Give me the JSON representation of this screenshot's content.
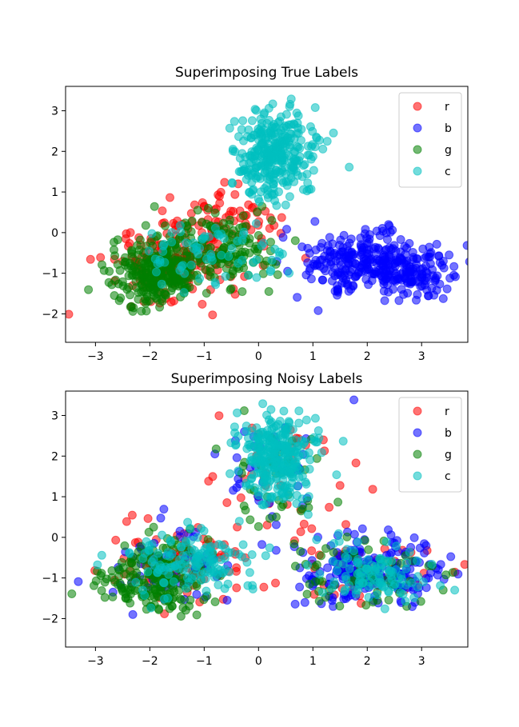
{
  "chart_data": [
    {
      "type": "scatter",
      "title": "Superimposing True Labels",
      "xlabel": "",
      "ylabel": "",
      "xlim": [
        -3.55,
        3.85
      ],
      "ylim": [
        -2.7,
        3.6
      ],
      "xticks": [
        -3,
        -2,
        -1,
        0,
        1,
        2,
        3
      ],
      "yticks": [
        -2,
        -1,
        0,
        1,
        2,
        3
      ],
      "grid": false,
      "legend": "upper right",
      "marker_alpha": 0.55,
      "series": [
        {
          "name": "r",
          "color": "#ff0000",
          "clusters": [
            {
              "cx": -1.7,
              "cy": -0.8,
              "sx": 0.55,
              "sy": 0.45,
              "n": 140
            },
            {
              "cx": -0.6,
              "cy": 0.2,
              "sx": 0.5,
              "sy": 0.4,
              "n": 70
            }
          ]
        },
        {
          "name": "b",
          "color": "#0000ff",
          "clusters": [
            {
              "cx": 2.0,
              "cy": -0.7,
              "sx": 0.6,
              "sy": 0.35,
              "n": 280
            },
            {
              "cx": 2.9,
              "cy": -1.1,
              "sx": 0.3,
              "sy": 0.3,
              "n": 80
            }
          ]
        },
        {
          "name": "g",
          "color": "#008000",
          "clusters": [
            {
              "cx": -1.9,
              "cy": -1.0,
              "sx": 0.45,
              "sy": 0.4,
              "n": 260
            },
            {
              "cx": -0.7,
              "cy": -0.4,
              "sx": 0.55,
              "sy": 0.45,
              "n": 150
            }
          ]
        },
        {
          "name": "c",
          "color": "#00bfbf",
          "clusters": [
            {
              "cx": 0.3,
              "cy": 1.9,
              "sx": 0.35,
              "sy": 0.55,
              "n": 320
            },
            {
              "cx": -0.9,
              "cy": -0.5,
              "sx": 0.6,
              "sy": 0.4,
              "n": 70
            }
          ]
        }
      ]
    },
    {
      "type": "scatter",
      "title": "Superimposing Noisy Labels",
      "xlabel": "",
      "ylabel": "",
      "xlim": [
        -3.55,
        3.85
      ],
      "ylim": [
        -2.7,
        3.6
      ],
      "xticks": [
        -3,
        -2,
        -1,
        0,
        1,
        2,
        3
      ],
      "yticks": [
        -2,
        -1,
        0,
        1,
        2,
        3
      ],
      "grid": false,
      "legend": "upper right",
      "marker_alpha": 0.55,
      "series": [
        {
          "name": "r",
          "color": "#ff0000",
          "clusters": [
            {
              "cx": -1.3,
              "cy": -0.7,
              "sx": 0.7,
              "sy": 0.5,
              "n": 90
            },
            {
              "cx": 0.4,
              "cy": 1.5,
              "sx": 0.5,
              "sy": 0.7,
              "n": 40
            },
            {
              "cx": 1.8,
              "cy": -0.8,
              "sx": 0.7,
              "sy": 0.4,
              "n": 50
            }
          ]
        },
        {
          "name": "b",
          "color": "#0000ff",
          "clusters": [
            {
              "cx": 2.1,
              "cy": -0.8,
              "sx": 0.65,
              "sy": 0.4,
              "n": 200
            },
            {
              "cx": -1.5,
              "cy": -0.8,
              "sx": 0.6,
              "sy": 0.5,
              "n": 60
            },
            {
              "cx": 0.3,
              "cy": 1.6,
              "sx": 0.5,
              "sy": 0.7,
              "n": 40
            }
          ]
        },
        {
          "name": "g",
          "color": "#008000",
          "clusters": [
            {
              "cx": -1.9,
              "cy": -1.0,
              "sx": 0.5,
              "sy": 0.45,
              "n": 200
            },
            {
              "cx": 1.9,
              "cy": -0.9,
              "sx": 0.6,
              "sy": 0.45,
              "n": 60
            },
            {
              "cx": 0.3,
              "cy": 1.5,
              "sx": 0.5,
              "sy": 0.8,
              "n": 40
            }
          ]
        },
        {
          "name": "c",
          "color": "#00bfbf",
          "clusters": [
            {
              "cx": 0.3,
              "cy": 2.0,
              "sx": 0.35,
              "sy": 0.55,
              "n": 280
            },
            {
              "cx": -1.3,
              "cy": -0.6,
              "sx": 0.55,
              "sy": 0.4,
              "n": 140
            },
            {
              "cx": 2.2,
              "cy": -0.9,
              "sx": 0.5,
              "sy": 0.35,
              "n": 110
            }
          ]
        }
      ]
    }
  ]
}
